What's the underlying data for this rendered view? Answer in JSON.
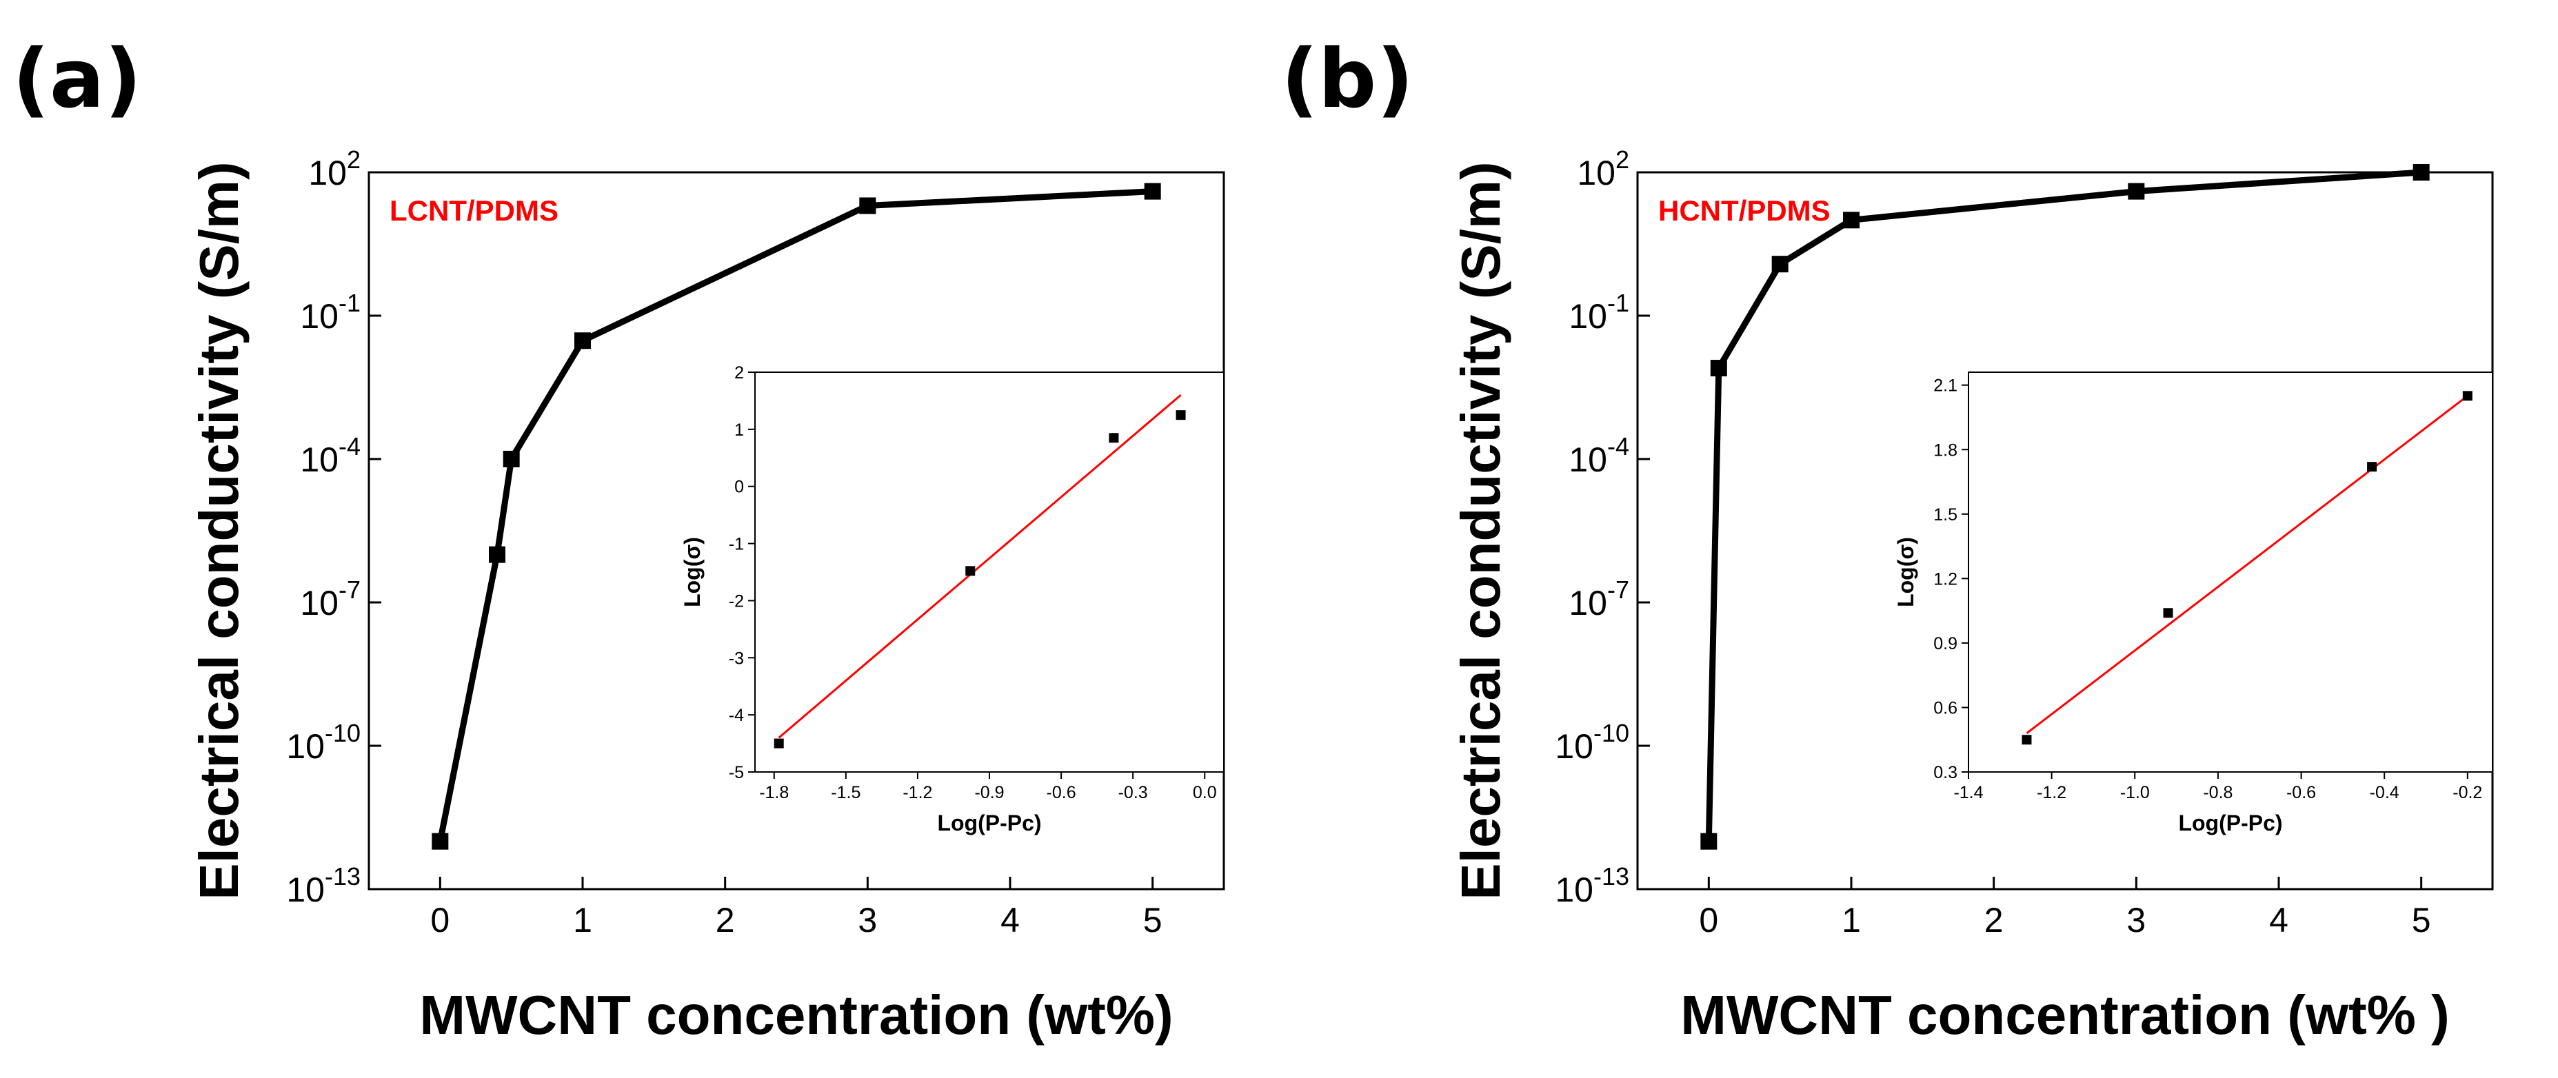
{
  "colors": {
    "line": "#000000",
    "fit": "#ff0000",
    "annotation": "#ff0000"
  },
  "chart_data": [
    {
      "type": "line",
      "panel_label": "(a)",
      "annotation": "LCNT/PDMS",
      "xlabel": "MWCNT concentration (wt%)",
      "ylabel": "Electrical conductivity (S/m)",
      "xlim": [
        -0.5,
        5.5
      ],
      "ylim_log10": [
        -13,
        2
      ],
      "x_ticks": [
        0,
        1,
        2,
        3,
        4,
        5
      ],
      "x_tick_labels": [
        "0",
        "1",
        "2",
        "3",
        "4",
        "5"
      ],
      "y_ticks_log10": [
        -13,
        -10,
        -7,
        -4,
        -1,
        2
      ],
      "y_tick_labels": [
        {
          "base": "10",
          "exp": "-13"
        },
        {
          "base": "10",
          "exp": "-10"
        },
        {
          "base": "10",
          "exp": "-7"
        },
        {
          "base": "10",
          "exp": "-4"
        },
        {
          "base": "10",
          "exp": "-1"
        },
        {
          "base": "10",
          "exp": "2"
        }
      ],
      "x": [
        0,
        0.4,
        0.5,
        1,
        3,
        5
      ],
      "y": [
        1e-12,
        1e-06,
        0.0001,
        0.03,
        20,
        40
      ],
      "inset": {
        "type": "scatter",
        "xlabel": "Log(P-Pc)",
        "ylabel": "Log(σ)",
        "xlim": [
          -1.88,
          0.08
        ],
        "ylim": [
          -5,
          2
        ],
        "x_ticks": [
          -1.8,
          -1.5,
          -1.2,
          -0.9,
          -0.6,
          -0.3,
          0.0
        ],
        "x_tick_labels": [
          "-1.8",
          "-1.5",
          "-1.2",
          "-0.9",
          "-0.6",
          "-0.3",
          "0.0"
        ],
        "y_ticks": [
          -5,
          -4,
          -3,
          -2,
          -1,
          0,
          1,
          2
        ],
        "y_tick_labels": [
          "-5",
          "-4",
          "-3",
          "-2",
          "-1",
          "0",
          "1",
          "2"
        ],
        "x": [
          -1.78,
          -0.98,
          -0.38,
          -0.1
        ],
        "y": [
          -4.5,
          -1.48,
          0.85,
          1.25
        ],
        "fit": {
          "x": [
            -1.78,
            -0.1
          ],
          "y": [
            -4.4,
            1.6
          ]
        }
      }
    },
    {
      "type": "line",
      "panel_label": "(b)",
      "annotation": "HCNT/PDMS",
      "xlabel": "MWCNT concentration (wt% )",
      "ylabel": "Electrical conductivity (S/m)",
      "xlim": [
        -0.5,
        5.5
      ],
      "ylim_log10": [
        -13,
        2
      ],
      "x_ticks": [
        0,
        1,
        2,
        3,
        4,
        5
      ],
      "x_tick_labels": [
        "0",
        "1",
        "2",
        "3",
        "4",
        "5"
      ],
      "y_ticks_log10": [
        -13,
        -10,
        -7,
        -4,
        -1,
        2
      ],
      "y_tick_labels": [
        {
          "base": "10",
          "exp": "-13"
        },
        {
          "base": "10",
          "exp": "-10"
        },
        {
          "base": "10",
          "exp": "-7"
        },
        {
          "base": "10",
          "exp": "-4"
        },
        {
          "base": "10",
          "exp": "-1"
        },
        {
          "base": "10",
          "exp": "2"
        }
      ],
      "x": [
        0,
        0.07,
        0.5,
        1,
        3,
        5
      ],
      "y": [
        1e-12,
        0.008,
        1.2,
        10,
        40,
        100
      ],
      "inset": {
        "type": "scatter",
        "xlabel": "Log(P-Pc)",
        "ylabel": "Log(σ)",
        "xlim": [
          -1.4,
          -0.14
        ],
        "ylim": [
          0.3,
          2.16
        ],
        "x_ticks": [
          -1.4,
          -1.2,
          -1.0,
          -0.8,
          -0.6,
          -0.4,
          -0.2
        ],
        "x_tick_labels": [
          "-1.4",
          "-1.2",
          "-1.0",
          "-0.8",
          "-0.6",
          "-0.4",
          "-0.2"
        ],
        "y_ticks": [
          0.3,
          0.6,
          0.9,
          1.2,
          1.5,
          1.8,
          2.1
        ],
        "y_tick_labels": [
          "0.3",
          "0.6",
          "0.9",
          "1.2",
          "1.5",
          "1.8",
          "2.1"
        ],
        "x": [
          -1.26,
          -0.92,
          -0.43,
          -0.2
        ],
        "y": [
          0.45,
          1.04,
          1.72,
          2.05
        ],
        "fit": {
          "x": [
            -1.26,
            -0.2
          ],
          "y": [
            0.48,
            2.05
          ]
        }
      }
    }
  ]
}
